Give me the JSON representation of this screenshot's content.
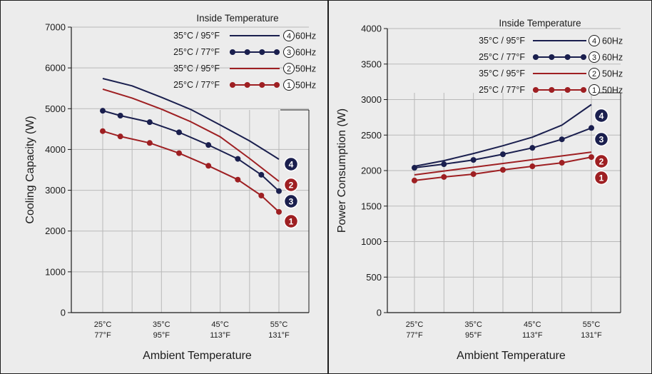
{
  "colors": {
    "navy": "#1a1f4e",
    "red": "#9e1f22",
    "grid": "#b9b9b9",
    "background": "#ececec"
  },
  "chart_data": [
    {
      "type": "line",
      "ylabel": "Cooling Capacity (W)",
      "xlabel": "Ambient Temperature",
      "ylim": [
        0,
        7000
      ],
      "yticks": [
        0,
        1000,
        2000,
        3000,
        4000,
        5000,
        6000,
        7000
      ],
      "xlim": [
        25,
        55
      ],
      "xticks": [
        {
          "value": 25,
          "c": "25°C",
          "f": "77°F"
        },
        {
          "value": 35,
          "c": "35°C",
          "f": "95°F"
        },
        {
          "value": 45,
          "c": "45°C",
          "f": "113°F"
        },
        {
          "value": 55,
          "c": "55°C",
          "f": "131°F"
        }
      ],
      "legend_title": "Inside Temperature",
      "series": [
        {
          "id": "4",
          "name": "35°C / 95°F",
          "freq": "60Hz",
          "color": "navy",
          "markers": false,
          "x": [
            25,
            30,
            35,
            40,
            45,
            50,
            55
          ],
          "y": [
            5740,
            5560,
            5280,
            4980,
            4600,
            4210,
            3760
          ]
        },
        {
          "id": "3",
          "name": "25°C / 77°F",
          "freq": "60Hz",
          "color": "navy",
          "markers": true,
          "x": [
            25,
            28,
            33,
            38,
            43,
            48,
            52,
            55
          ],
          "y": [
            4950,
            4830,
            4670,
            4420,
            4110,
            3770,
            3380,
            2980
          ]
        },
        {
          "id": "2",
          "name": "35°C / 95°F",
          "freq": "50Hz",
          "color": "red",
          "markers": false,
          "x": [
            25,
            30,
            35,
            40,
            45,
            50,
            55
          ],
          "y": [
            5480,
            5260,
            4990,
            4680,
            4310,
            3780,
            3220
          ]
        },
        {
          "id": "1",
          "name": "25°C / 77°F",
          "freq": "50Hz",
          "color": "red",
          "markers": true,
          "x": [
            25,
            28,
            33,
            38,
            43,
            48,
            52,
            55
          ],
          "y": [
            4450,
            4320,
            4160,
            3910,
            3600,
            3260,
            2870,
            2470
          ]
        }
      ],
      "badge_order": [
        "4",
        "2",
        "3",
        "1"
      ]
    },
    {
      "type": "line",
      "ylabel": "Power Consumption (W)",
      "xlabel": "Ambient Temperature",
      "ylim": [
        0,
        4000
      ],
      "yticks": [
        0,
        500,
        1000,
        1500,
        2000,
        2500,
        3000,
        3500,
        4000
      ],
      "xlim": [
        25,
        55
      ],
      "xticks": [
        {
          "value": 25,
          "c": "25°C",
          "f": "77°F"
        },
        {
          "value": 35,
          "c": "35°C",
          "f": "95°F"
        },
        {
          "value": 45,
          "c": "45°C",
          "f": "113°F"
        },
        {
          "value": 55,
          "c": "55°C",
          "f": "131°F"
        }
      ],
      "legend_title": "Inside Temperature",
      "series": [
        {
          "id": "4",
          "name": "35°C / 95°F",
          "freq": "60Hz",
          "color": "navy",
          "markers": false,
          "x": [
            25,
            30,
            35,
            40,
            45,
            50,
            55
          ],
          "y": [
            2060,
            2140,
            2240,
            2350,
            2470,
            2640,
            2930
          ]
        },
        {
          "id": "3",
          "name": "25°C / 77°F",
          "freq": "60Hz",
          "color": "navy",
          "markers": true,
          "x": [
            25,
            30,
            35,
            40,
            45,
            50,
            55
          ],
          "y": [
            2040,
            2090,
            2150,
            2230,
            2320,
            2440,
            2600
          ]
        },
        {
          "id": "2",
          "name": "35°C / 95°F",
          "freq": "50Hz",
          "color": "red",
          "markers": false,
          "x": [
            25,
            55
          ],
          "y": [
            1940,
            2260
          ]
        },
        {
          "id": "1",
          "name": "25°C / 77°F",
          "freq": "50Hz",
          "color": "red",
          "markers": true,
          "x": [
            25,
            30,
            35,
            40,
            45,
            50,
            55
          ],
          "y": [
            1860,
            1910,
            1950,
            2010,
            2060,
            2110,
            2190
          ]
        }
      ],
      "badge_order": [
        "4",
        "3",
        "2",
        "1"
      ]
    }
  ]
}
